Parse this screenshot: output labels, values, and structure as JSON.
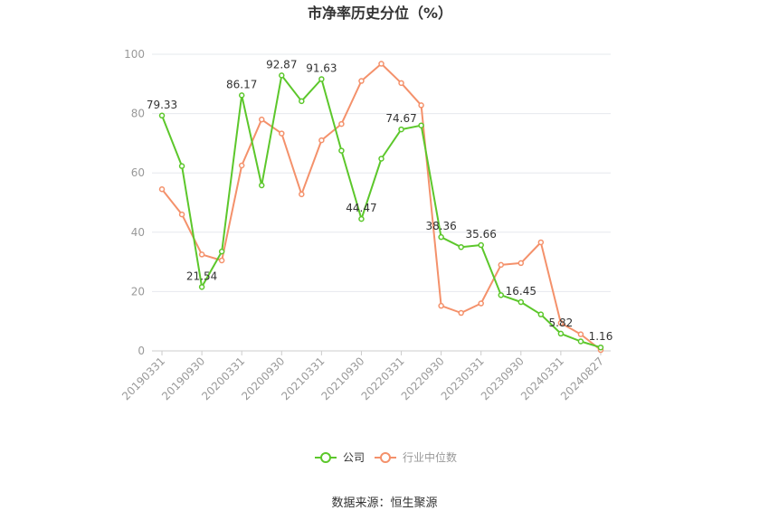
{
  "chart_data": {
    "type": "line",
    "title": "市净率历史分位（%）",
    "ylim": [
      0,
      100
    ],
    "yticks": [
      0,
      20,
      40,
      60,
      80,
      100
    ],
    "xtick_labels": [
      "20190331",
      "20190930",
      "20200331",
      "20200930",
      "20210331",
      "20210930",
      "20220331",
      "20220930",
      "20230331",
      "20230930",
      "20240331",
      "20240827"
    ],
    "xtick_positions": [
      0,
      2,
      4,
      6,
      8,
      10,
      12,
      14,
      16,
      18,
      20,
      22
    ],
    "series": [
      {
        "name": "公司",
        "color": "#5cc72b",
        "values": [
          79.33,
          62.3,
          21.54,
          33.5,
          86.17,
          55.8,
          92.87,
          84.2,
          91.63,
          67.5,
          44.47,
          64.8,
          74.67,
          76.0,
          38.36,
          35.0,
          35.66,
          18.8,
          16.45,
          12.3,
          5.82,
          3.2,
          1.16
        ],
        "labels": {
          "0": "79.33",
          "2": "21.54",
          "4": "86.17",
          "6": "92.87",
          "8": "91.63",
          "10": "44.47",
          "12": "74.67",
          "14": "38.36",
          "16": "35.66",
          "18": "16.45",
          "20": "5.82",
          "22": "1.16"
        }
      },
      {
        "name": "行业中位数",
        "color": "#f4916b",
        "values": [
          54.5,
          46.0,
          32.5,
          30.5,
          62.5,
          78.0,
          73.3,
          52.8,
          71.0,
          76.5,
          91.0,
          96.8,
          90.3,
          82.8,
          15.2,
          12.8,
          16.0,
          29.0,
          29.6,
          36.6,
          9.4,
          5.6,
          0.3
        ]
      }
    ],
    "legend_position": "bottom-center",
    "grid": true
  },
  "source_text": "数据来源：恒生聚源"
}
